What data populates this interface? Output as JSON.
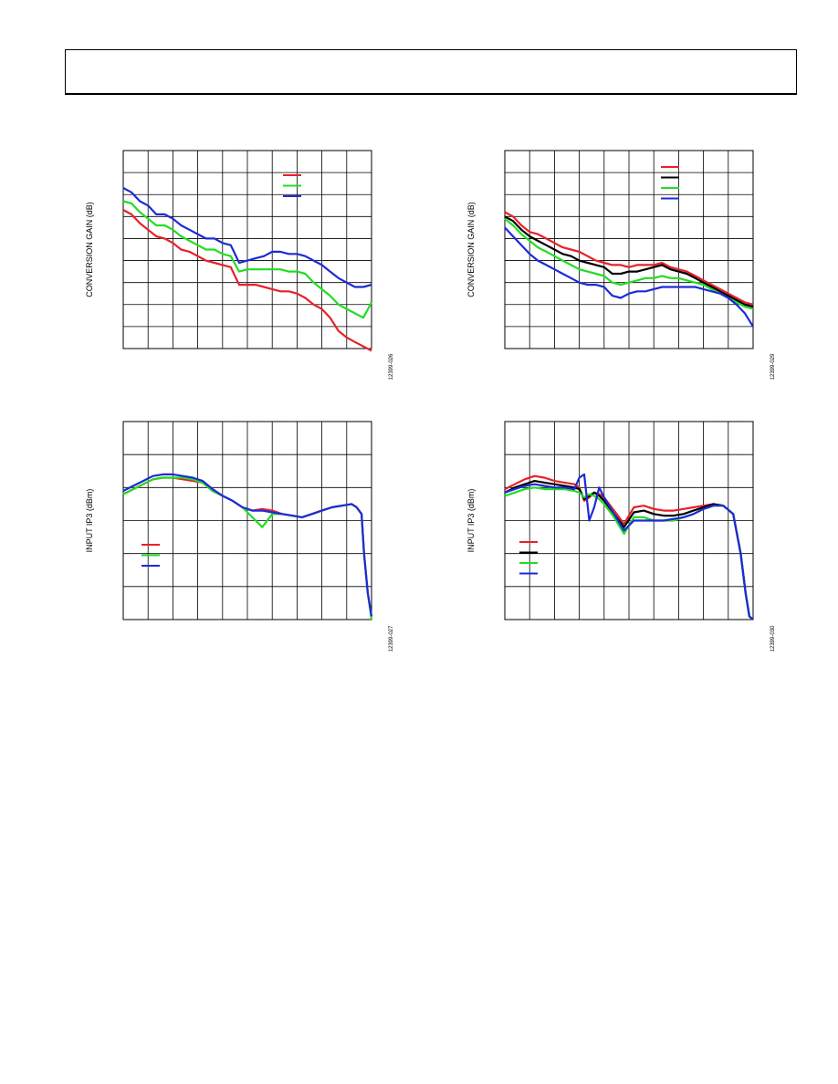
{
  "page": {
    "header_text": ""
  },
  "chart_data": [
    {
      "type": "line",
      "ylabel": "CONVERSION GAIN (dB)",
      "figure_id": "12399-026",
      "grid": true,
      "legend_position": "top-right",
      "x": [
        0,
        0.033,
        0.067,
        0.1,
        0.133,
        0.167,
        0.2,
        0.233,
        0.267,
        0.3,
        0.333,
        0.367,
        0.4,
        0.433,
        0.467,
        0.5,
        0.533,
        0.567,
        0.6,
        0.633,
        0.667,
        0.7,
        0.733,
        0.767,
        0.8,
        0.833,
        0.867,
        0.9,
        0.933,
        0.967,
        1.0
      ],
      "series": [
        {
          "color": "#e8202a",
          "values": [
            6.3,
            6.1,
            5.7,
            5.4,
            5.1,
            5.0,
            4.8,
            4.5,
            4.4,
            4.2,
            4.0,
            3.9,
            3.8,
            3.7,
            2.9,
            2.9,
            2.9,
            2.8,
            2.7,
            2.6,
            2.6,
            2.5,
            2.3,
            2.0,
            1.8,
            1.4,
            0.8,
            0.5,
            0.3,
            0.1,
            -0.1
          ]
        },
        {
          "color": "#22dd22",
          "values": [
            6.7,
            6.6,
            6.2,
            5.9,
            5.6,
            5.6,
            5.4,
            5.1,
            4.9,
            4.7,
            4.5,
            4.5,
            4.3,
            4.2,
            3.5,
            3.6,
            3.6,
            3.6,
            3.6,
            3.6,
            3.5,
            3.5,
            3.4,
            3.0,
            2.7,
            2.4,
            2.0,
            1.8,
            1.6,
            1.4,
            2.1
          ]
        },
        {
          "color": "#1d2ad8",
          "values": [
            7.3,
            7.1,
            6.7,
            6.5,
            6.1,
            6.1,
            5.9,
            5.6,
            5.4,
            5.2,
            5.0,
            5.0,
            4.8,
            4.7,
            3.9,
            4.0,
            4.1,
            4.2,
            4.4,
            4.4,
            4.3,
            4.3,
            4.2,
            4.0,
            3.8,
            3.5,
            3.2,
            3.0,
            2.8,
            2.8,
            2.9
          ]
        }
      ],
      "ylim": [
        0,
        9
      ]
    },
    {
      "type": "line",
      "ylabel": "CONVERSION GAIN (dB)",
      "figure_id": "12399-029",
      "grid": true,
      "legend_position": "top-right",
      "x": [
        0,
        0.033,
        0.067,
        0.1,
        0.133,
        0.167,
        0.2,
        0.233,
        0.267,
        0.3,
        0.333,
        0.367,
        0.4,
        0.433,
        0.467,
        0.5,
        0.533,
        0.567,
        0.6,
        0.633,
        0.667,
        0.7,
        0.733,
        0.767,
        0.8,
        0.833,
        0.867,
        0.9,
        0.933,
        0.967,
        1.0
      ],
      "series": [
        {
          "color": "#e8202a",
          "values": [
            6.2,
            6.0,
            5.6,
            5.3,
            5.2,
            5.0,
            4.8,
            4.6,
            4.5,
            4.4,
            4.2,
            4.0,
            3.9,
            3.8,
            3.8,
            3.7,
            3.8,
            3.8,
            3.8,
            3.9,
            3.7,
            3.6,
            3.5,
            3.3,
            3.1,
            2.9,
            2.7,
            2.5,
            2.3,
            2.1,
            2.0
          ]
        },
        {
          "color": "#000000",
          "values": [
            6.0,
            5.8,
            5.4,
            5.1,
            4.9,
            4.7,
            4.5,
            4.3,
            4.2,
            4.0,
            3.9,
            3.8,
            3.7,
            3.4,
            3.4,
            3.5,
            3.5,
            3.6,
            3.7,
            3.8,
            3.6,
            3.5,
            3.4,
            3.2,
            3.0,
            2.8,
            2.6,
            2.4,
            2.2,
            2.0,
            1.9
          ]
        },
        {
          "color": "#22dd22",
          "values": [
            5.9,
            5.6,
            5.2,
            4.9,
            4.6,
            4.4,
            4.2,
            4.0,
            3.8,
            3.6,
            3.5,
            3.4,
            3.3,
            3.0,
            2.9,
            3.0,
            3.1,
            3.2,
            3.2,
            3.3,
            3.2,
            3.2,
            3.1,
            3.0,
            2.9,
            2.7,
            2.5,
            2.3,
            2.1,
            1.9,
            1.8
          ]
        },
        {
          "color": "#1d2ad8",
          "values": [
            5.5,
            5.1,
            4.7,
            4.3,
            4.0,
            3.8,
            3.6,
            3.4,
            3.2,
            3.0,
            2.9,
            2.9,
            2.8,
            2.4,
            2.3,
            2.5,
            2.6,
            2.6,
            2.7,
            2.8,
            2.8,
            2.8,
            2.8,
            2.8,
            2.7,
            2.6,
            2.5,
            2.3,
            2.0,
            1.6,
            1.0
          ]
        }
      ],
      "ylim": [
        0,
        9
      ]
    },
    {
      "type": "line",
      "ylabel": "INPUT IP3 (dBm)",
      "figure_id": "12399-027",
      "grid": true,
      "legend_position": "lower-left",
      "x": [
        0,
        0.04,
        0.08,
        0.12,
        0.16,
        0.2,
        0.24,
        0.28,
        0.32,
        0.36,
        0.4,
        0.44,
        0.48,
        0.52,
        0.56,
        0.6,
        0.64,
        0.68,
        0.72,
        0.76,
        0.8,
        0.84,
        0.88,
        0.92,
        0.94,
        0.96,
        0.97,
        0.985,
        1.0
      ],
      "series": [
        {
          "color": "#e8202a",
          "values": [
            3.8,
            3.95,
            4.1,
            4.25,
            4.3,
            4.3,
            4.25,
            4.2,
            4.15,
            3.9,
            3.75,
            3.6,
            3.4,
            3.3,
            3.35,
            3.3,
            3.2,
            3.15,
            3.1,
            3.2,
            3.3,
            3.4,
            3.45,
            3.5,
            3.4,
            3.2,
            2.0,
            0.8,
            0.1
          ]
        },
        {
          "color": "#22dd22",
          "values": [
            3.8,
            3.95,
            4.1,
            4.25,
            4.3,
            4.3,
            4.3,
            4.25,
            4.15,
            3.9,
            3.75,
            3.6,
            3.4,
            3.1,
            2.8,
            3.2,
            3.2,
            3.15,
            3.1,
            3.2,
            3.3,
            3.4,
            3.45,
            3.5,
            3.4,
            3.2,
            2.0,
            0.8,
            0.0
          ]
        },
        {
          "color": "#1d2ad8",
          "values": [
            3.9,
            4.05,
            4.2,
            4.35,
            4.4,
            4.4,
            4.35,
            4.3,
            4.2,
            3.95,
            3.75,
            3.6,
            3.4,
            3.3,
            3.3,
            3.25,
            3.2,
            3.15,
            3.1,
            3.2,
            3.3,
            3.4,
            3.45,
            3.5,
            3.4,
            3.2,
            2.0,
            0.8,
            0.1
          ]
        }
      ],
      "ylim": [
        0,
        6
      ]
    },
    {
      "type": "line",
      "ylabel": "INPUT IP3 (dBm)",
      "figure_id": "12399-030",
      "grid": true,
      "legend_position": "lower-left",
      "x": [
        0,
        0.04,
        0.08,
        0.12,
        0.16,
        0.2,
        0.24,
        0.28,
        0.3,
        0.32,
        0.34,
        0.36,
        0.38,
        0.4,
        0.44,
        0.48,
        0.52,
        0.56,
        0.6,
        0.64,
        0.68,
        0.72,
        0.76,
        0.8,
        0.84,
        0.88,
        0.92,
        0.95,
        0.97,
        0.985,
        1.0
      ],
      "series": [
        {
          "color": "#e8202a",
          "values": [
            3.95,
            4.1,
            4.25,
            4.35,
            4.3,
            4.2,
            4.15,
            4.1,
            4.0,
            3.6,
            3.7,
            3.85,
            3.8,
            3.7,
            3.3,
            2.9,
            3.4,
            3.45,
            3.35,
            3.3,
            3.3,
            3.35,
            3.4,
            3.45,
            3.5,
            3.45,
            3.2,
            2.0,
            0.8,
            0.1,
            0.0
          ]
        },
        {
          "color": "#000000",
          "values": [
            3.85,
            4.0,
            4.1,
            4.2,
            4.15,
            4.1,
            4.05,
            4.0,
            3.95,
            3.65,
            3.75,
            3.85,
            3.75,
            3.6,
            3.2,
            2.8,
            3.25,
            3.3,
            3.2,
            3.15,
            3.15,
            3.2,
            3.3,
            3.4,
            3.5,
            3.45,
            3.2,
            2.0,
            0.8,
            0.1,
            0.0
          ]
        },
        {
          "color": "#22dd22",
          "values": [
            3.75,
            3.85,
            3.95,
            4.0,
            3.95,
            3.95,
            3.95,
            3.9,
            3.85,
            3.7,
            3.8,
            3.75,
            3.65,
            3.5,
            3.1,
            2.6,
            3.1,
            3.1,
            3.0,
            3.0,
            3.0,
            3.1,
            3.2,
            3.35,
            3.45,
            3.45,
            3.2,
            2.0,
            0.8,
            0.1,
            0.0
          ]
        },
        {
          "color": "#1d2ad8",
          "values": [
            3.85,
            3.95,
            4.05,
            4.1,
            4.05,
            4.0,
            4.0,
            3.95,
            4.3,
            4.4,
            3.0,
            3.4,
            4.0,
            3.7,
            3.2,
            2.7,
            3.0,
            3.0,
            3.0,
            3.0,
            3.05,
            3.1,
            3.2,
            3.35,
            3.45,
            3.45,
            3.2,
            2.0,
            0.8,
            0.1,
            0.0
          ]
        }
      ],
      "ylim": [
        0,
        6
      ]
    }
  ]
}
